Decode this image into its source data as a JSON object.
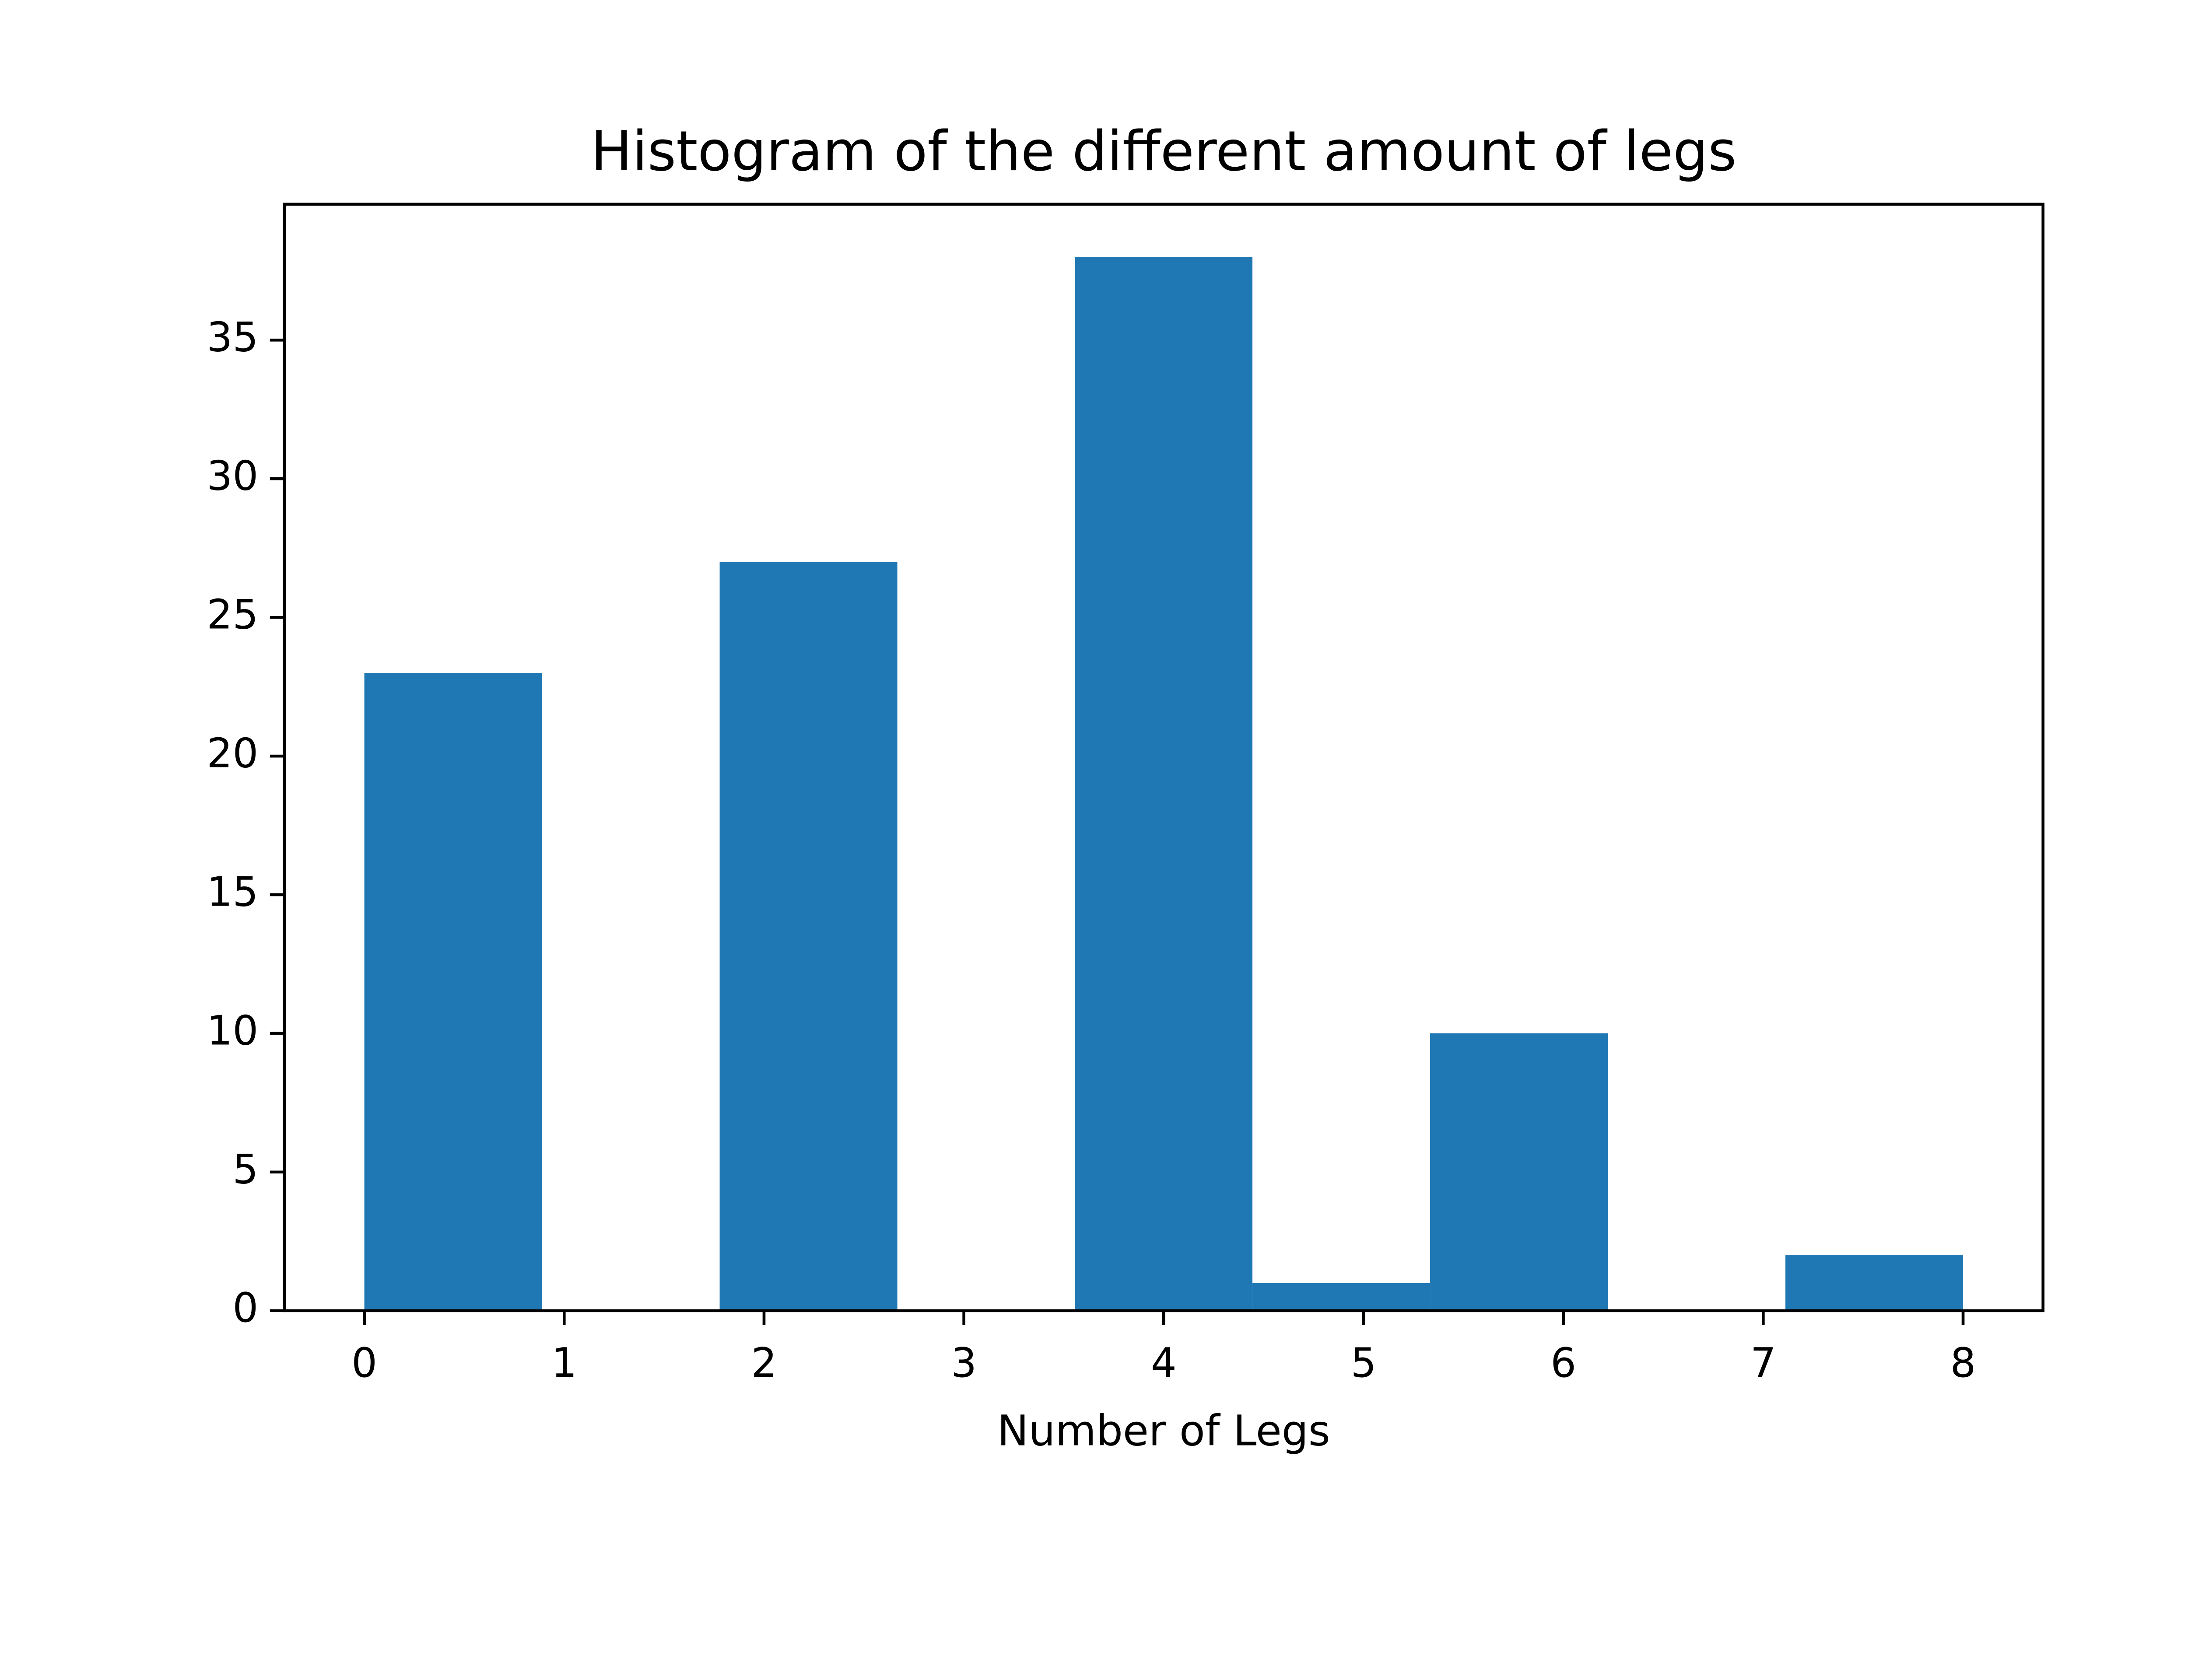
{
  "chart_data": {
    "type": "histogram",
    "title": "Histogram of the different amount of legs",
    "x_label": "Number of Legs",
    "bins": [
      0,
      0.889,
      1.778,
      2.667,
      3.556,
      4.444,
      5.333,
      6.222,
      7.111,
      8
    ],
    "values": [
      23,
      0,
      27,
      0,
      38,
      1,
      10,
      0,
      2
    ],
    "color": "#1f77b4",
    "xlim": [
      -0.4,
      8.4
    ],
    "xticks": [
      0,
      1,
      2,
      3,
      4,
      5,
      6,
      7,
      8
    ],
    "ylim": [
      0,
      39.9
    ],
    "yticks": [
      0,
      5,
      10,
      15,
      20,
      25,
      30,
      35
    ],
    "grid": false
  }
}
